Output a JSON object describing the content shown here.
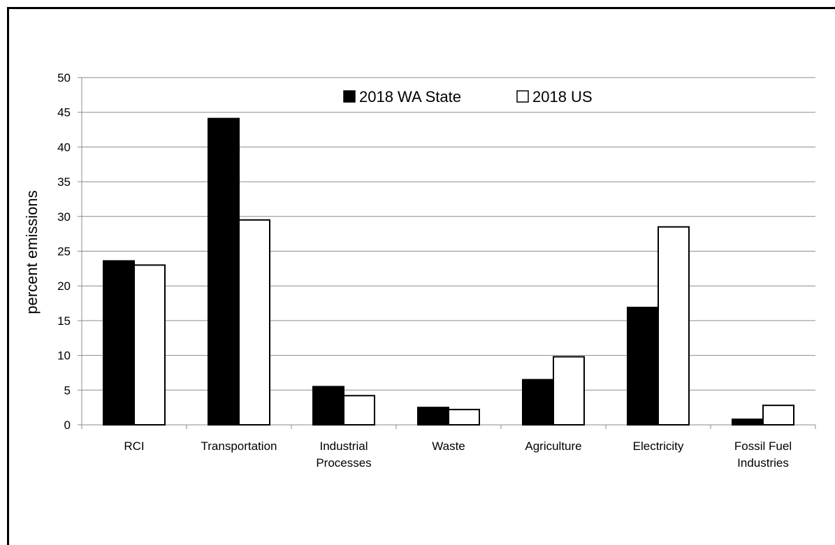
{
  "chart_data": {
    "type": "bar",
    "title": "",
    "xlabel": "",
    "ylabel": "percent emissions",
    "ylim": [
      0,
      50
    ],
    "yticks": [
      0,
      5,
      10,
      15,
      20,
      25,
      30,
      35,
      40,
      45,
      50
    ],
    "grid": true,
    "legend_position": "top-center",
    "categories": [
      [
        "RCI"
      ],
      [
        "Transportation"
      ],
      [
        "Industrial",
        "Processes"
      ],
      [
        "Waste"
      ],
      [
        "Agriculture"
      ],
      [
        "Electricity"
      ],
      [
        "Fossil Fuel",
        "Industries"
      ]
    ],
    "series": [
      {
        "name": "2018 WA State",
        "fill": "#000000",
        "values": [
          23.6,
          44.1,
          5.5,
          2.5,
          6.5,
          16.9,
          0.8
        ]
      },
      {
        "name": "2018  US",
        "fill": "#ffffff",
        "values": [
          23.0,
          29.5,
          4.2,
          2.2,
          9.8,
          28.5,
          2.8
        ]
      }
    ]
  }
}
